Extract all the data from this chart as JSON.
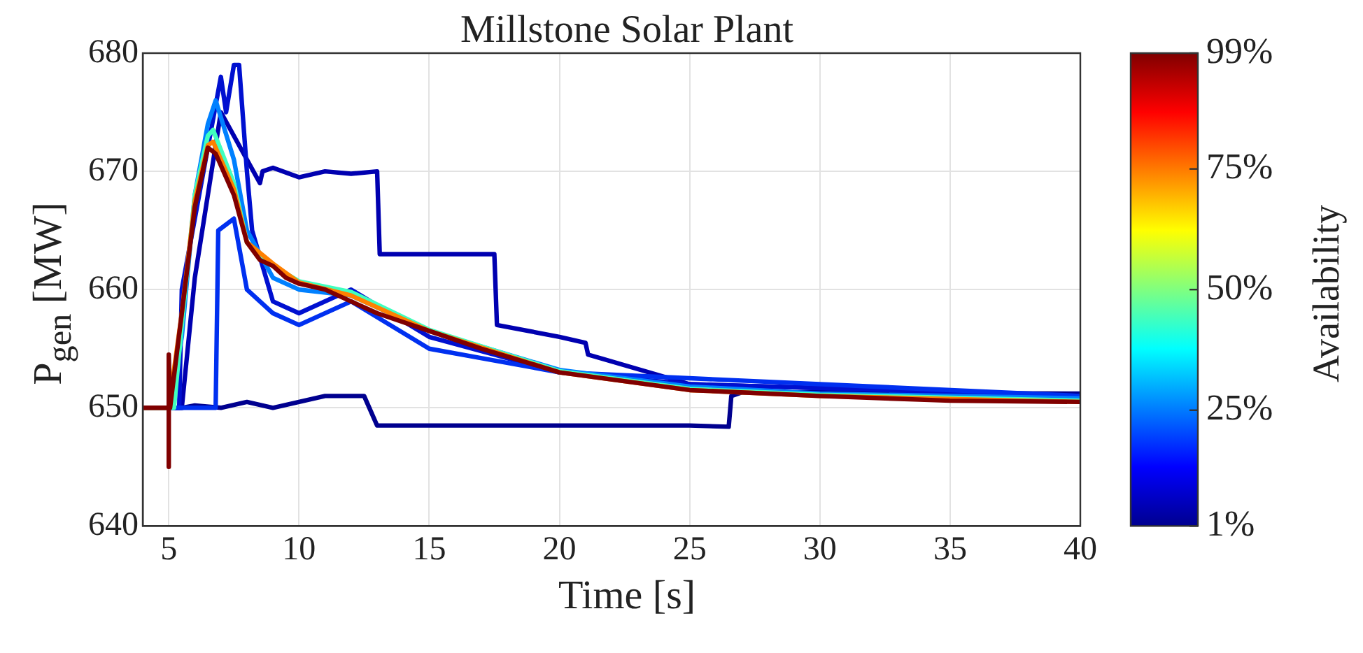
{
  "chart_data": {
    "type": "line",
    "title": "Millstone Solar Plant",
    "xlabel": "Time [s]",
    "ylabel": "P$_{gen}$ [MW]",
    "clabel": "Availability",
    "xlim": [
      4,
      40
    ],
    "xticks": [
      5,
      10,
      15,
      20,
      25,
      30,
      35,
      40
    ],
    "ylim": [
      640,
      680
    ],
    "yticks": [
      640,
      650,
      660,
      670,
      680
    ],
    "grid": true,
    "legend": false,
    "marker": "none",
    "line_style": "solid",
    "clim": [
      1,
      99
    ],
    "cticks": [
      {
        "value": 1,
        "label": "1%"
      },
      {
        "value": 25,
        "label": "25%"
      },
      {
        "value": 50,
        "label": "50%"
      },
      {
        "value": 75,
        "label": "75%"
      },
      {
        "value": 99,
        "label": "99%"
      }
    ],
    "series": [
      {
        "color": "#00008f",
        "x": [
          4,
          5.5,
          6,
          7,
          8,
          9,
          10,
          11,
          12,
          12.5,
          13,
          25,
          26.5,
          26.6,
          27,
          30,
          40
        ],
        "values": [
          650,
          650,
          650.2,
          650,
          650.5,
          650,
          650.5,
          651,
          651,
          651,
          648.5,
          648.5,
          648.4,
          651,
          651.3,
          651.3,
          651.2
        ]
      },
      {
        "color": "#0000b0",
        "x": [
          4,
          5.5,
          6,
          7,
          8,
          8.5,
          8.6,
          9,
          10,
          11,
          12,
          13,
          13.1,
          15,
          17.5,
          17.6,
          20,
          21,
          21.1,
          25,
          40
        ],
        "values": [
          650,
          650,
          661,
          675,
          671,
          669,
          670,
          670.3,
          669.5,
          670,
          669.8,
          670,
          663,
          663,
          663,
          657,
          656,
          655.5,
          654.5,
          652,
          651
        ]
      },
      {
        "color": "#0010d0",
        "x": [
          4,
          5.4,
          5.5,
          6.5,
          7,
          7.2,
          7.5,
          7.7,
          8,
          8.2,
          9,
          10,
          12,
          15,
          20,
          25,
          40
        ],
        "values": [
          650,
          650,
          660,
          672,
          678,
          675,
          679,
          679,
          670,
          665,
          659,
          658,
          660,
          656,
          653,
          652,
          651
        ]
      },
      {
        "color": "#0030f0",
        "x": [
          4,
          6.8,
          6.9,
          7.5,
          8,
          9,
          10,
          12,
          15,
          20,
          40
        ],
        "values": [
          650,
          650,
          665,
          666,
          660,
          658,
          657,
          659,
          655,
          653,
          651
        ]
      },
      {
        "color": "#0080ff",
        "x": [
          4,
          5,
          5.5,
          6,
          6.5,
          6.8,
          7.5,
          8,
          9,
          10,
          12,
          15,
          20,
          25,
          30,
          40
        ],
        "values": [
          650,
          650,
          656,
          668,
          674,
          676,
          671,
          665,
          661,
          660,
          659.5,
          656.5,
          653.2,
          651.8,
          651.2,
          650.8
        ]
      },
      {
        "color": "#40ffbf",
        "x": [
          4,
          5.2,
          5.5,
          6,
          6.5,
          6.7,
          7.5,
          8,
          9,
          10,
          12,
          15,
          20,
          25,
          30,
          40
        ],
        "values": [
          650,
          650,
          657,
          668,
          673,
          673.5,
          669,
          664,
          662,
          660.7,
          659.8,
          656.6,
          653.1,
          651.6,
          651.1,
          650.6
        ]
      },
      {
        "color": "#ff8000",
        "x": [
          4,
          5,
          5.5,
          6,
          6.5,
          6.7,
          7.5,
          8,
          9,
          10,
          12,
          15,
          20,
          25,
          30,
          40
        ],
        "values": [
          650,
          650,
          658,
          667.5,
          672.2,
          672.5,
          668.5,
          664,
          662.2,
          660.6,
          659.5,
          656.5,
          653,
          651.5,
          651,
          650.5
        ]
      },
      {
        "color": "#800000",
        "x": [
          4,
          5,
          5,
          5,
          5.05,
          5.5,
          6,
          6.5,
          6.8,
          7.5,
          8,
          8.5,
          9,
          9.5,
          10,
          11,
          12,
          13,
          15,
          17,
          20,
          25,
          30,
          35,
          40
        ],
        "values": [
          650,
          650,
          645,
          654.5,
          650,
          658,
          667,
          672,
          671.5,
          668,
          664,
          662.5,
          662,
          661,
          660.5,
          660,
          659,
          658,
          656.5,
          655,
          653,
          651.5,
          651,
          650.6,
          650.5
        ]
      }
    ]
  }
}
